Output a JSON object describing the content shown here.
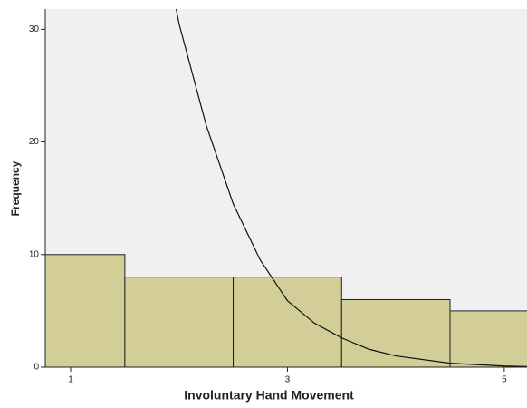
{
  "chart_data": {
    "type": "histogram",
    "xlabel": "Involuntary Hand Movement",
    "ylabel": "Frequency",
    "bins": [
      0.5,
      1.5,
      2.5,
      3.5,
      4.5,
      5.5
    ],
    "counts": [
      10,
      8,
      8,
      6,
      5
    ],
    "color": "#d3ce97",
    "edgecolor": "#222222",
    "background": "#f0f0f0",
    "xlim": [
      0.766,
      5.21
    ],
    "ylim": [
      0,
      31.8
    ],
    "xticks": [
      1,
      3,
      5
    ],
    "yticks": [
      0,
      10,
      20,
      30
    ],
    "curve": {
      "color": "#111111",
      "x": [
        1.95,
        2.0,
        2.25,
        2.5,
        2.75,
        3.0,
        3.25,
        3.5,
        3.75,
        4.0,
        4.5,
        5.0,
        5.21
      ],
      "values": [
        33,
        30.5,
        21.5,
        14.5,
        9.5,
        5.9,
        3.9,
        2.6,
        1.6,
        1.0,
        0.35,
        0.1,
        0.05
      ]
    }
  }
}
